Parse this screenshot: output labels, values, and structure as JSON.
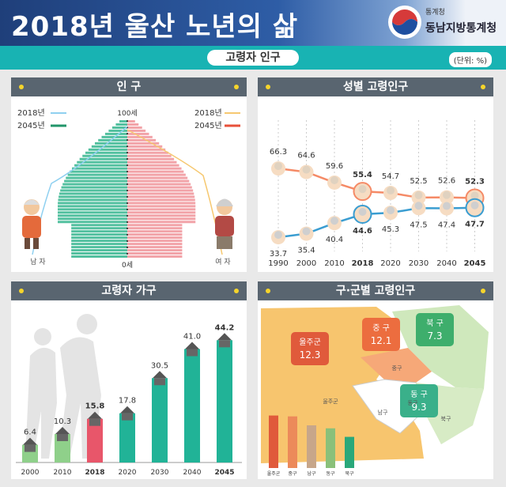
{
  "header": {
    "title": "2018년 울산 노년의 삶",
    "org_small": "통계청",
    "org": "동남지방통계청"
  },
  "band": {
    "title": "고령자 인구",
    "unit": "(단위: %)"
  },
  "panels": {
    "population": {
      "title": "인 구",
      "legend_left": [
        "2018년",
        "2045년"
      ],
      "legend_right": [
        "2018년",
        "2045년"
      ],
      "top_age": "100세",
      "bottom_age": "0세",
      "male": "남 자",
      "female": "여 자"
    },
    "gender": {
      "title": "성별 고령인구"
    },
    "households": {
      "title": "고령자 가구"
    },
    "district": {
      "title": "구·군별 고령인구"
    }
  },
  "colors": {
    "teal": "#1ab5b1",
    "panel_title": "#596570",
    "male": "#3a9dd1",
    "female": "#f58a66",
    "pyr_male": "#52c09f",
    "pyr_female": "#f2a3a8"
  },
  "chart_data": [
    {
      "type": "line",
      "title": "성별 고령인구",
      "categories": [
        "1990",
        "2000",
        "2010",
        "2018",
        "2020",
        "2030",
        "2040",
        "2045"
      ],
      "series": [
        {
          "values": [
            66.3,
            64.6,
            59.6,
            55.4,
            54.7,
            52.5,
            52.6,
            52.3
          ]
        },
        {
          "values": [
            33.7,
            35.4,
            40.4,
            44.6,
            45.3,
            47.5,
            47.4,
            47.7
          ]
        }
      ],
      "highlight": [
        "2018",
        "2045"
      ]
    },
    {
      "type": "bar",
      "title": "고령자 가구",
      "categories": [
        "2000",
        "2010",
        "2018",
        "2020",
        "2030",
        "2040",
        "2045"
      ],
      "values": [
        6.4,
        10.3,
        15.8,
        17.8,
        30.5,
        41.0,
        44.2
      ],
      "value_labels": [
        "6.4",
        "10.3",
        "15.8",
        "17.8",
        "30.5",
        "41.0",
        "44.2"
      ],
      "highlight": [
        "2018",
        "2045"
      ]
    },
    {
      "type": "bar",
      "title": "구·군별 고령인구",
      "regions": [
        {
          "name": "울주군",
          "value": "12.3"
        },
        {
          "name": "중 구",
          "value": "12.1"
        },
        {
          "name": "북 구",
          "value": "7.3"
        },
        {
          "name": "동 구",
          "value": "9.3"
        }
      ],
      "map_labels": [
        "울주군",
        "중구",
        "남구",
        "동구",
        "북구"
      ],
      "bar_categories": [
        "울주군",
        "중구",
        "남구",
        "동구",
        "북구"
      ],
      "bar_values": [
        12.3,
        12.1,
        10.0,
        9.3,
        7.3
      ]
    }
  ]
}
